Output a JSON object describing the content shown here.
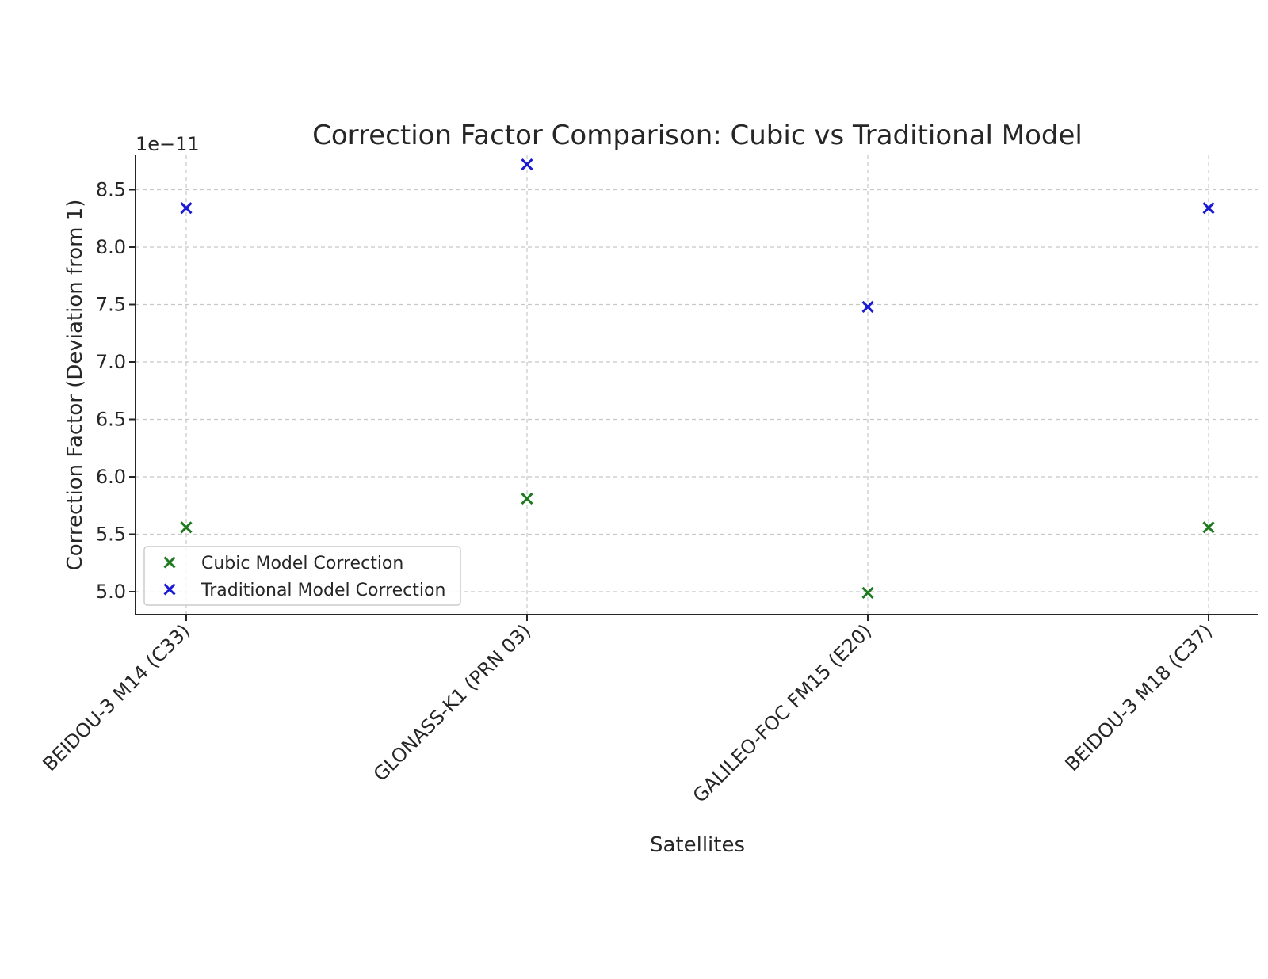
{
  "chart_data": {
    "type": "scatter",
    "title": "Correction Factor Comparison: Cubic vs Traditional Model",
    "xlabel": "Satellites",
    "ylabel": "Correction Factor (Deviation from 1)",
    "y_offset_label": "1e−11",
    "categories": [
      "BEIDOU-3 M14 (C33)",
      "GLONASS-K1 (PRN 03)",
      "GALILEO-FOC FM15 (E20)",
      "BEIDOU-3 M18 (C37)"
    ],
    "ylim": [
      4.8,
      8.8
    ],
    "yticks": [
      5.0,
      5.5,
      6.0,
      6.5,
      7.0,
      7.5,
      8.0,
      8.5
    ],
    "ytick_labels": [
      "5.0",
      "5.5",
      "6.0",
      "6.5",
      "7.0",
      "7.5",
      "8.0",
      "8.5"
    ],
    "grid": true,
    "legend_position": "lower-left",
    "marker": "x",
    "series": [
      {
        "name": "Cubic Model Correction",
        "color": "#1f7a1f",
        "values": [
          5.56,
          5.81,
          4.99,
          5.56
        ]
      },
      {
        "name": "Traditional Model Correction",
        "color": "#1a1ad6",
        "values": [
          8.34,
          8.72,
          7.48,
          8.34
        ]
      }
    ]
  }
}
